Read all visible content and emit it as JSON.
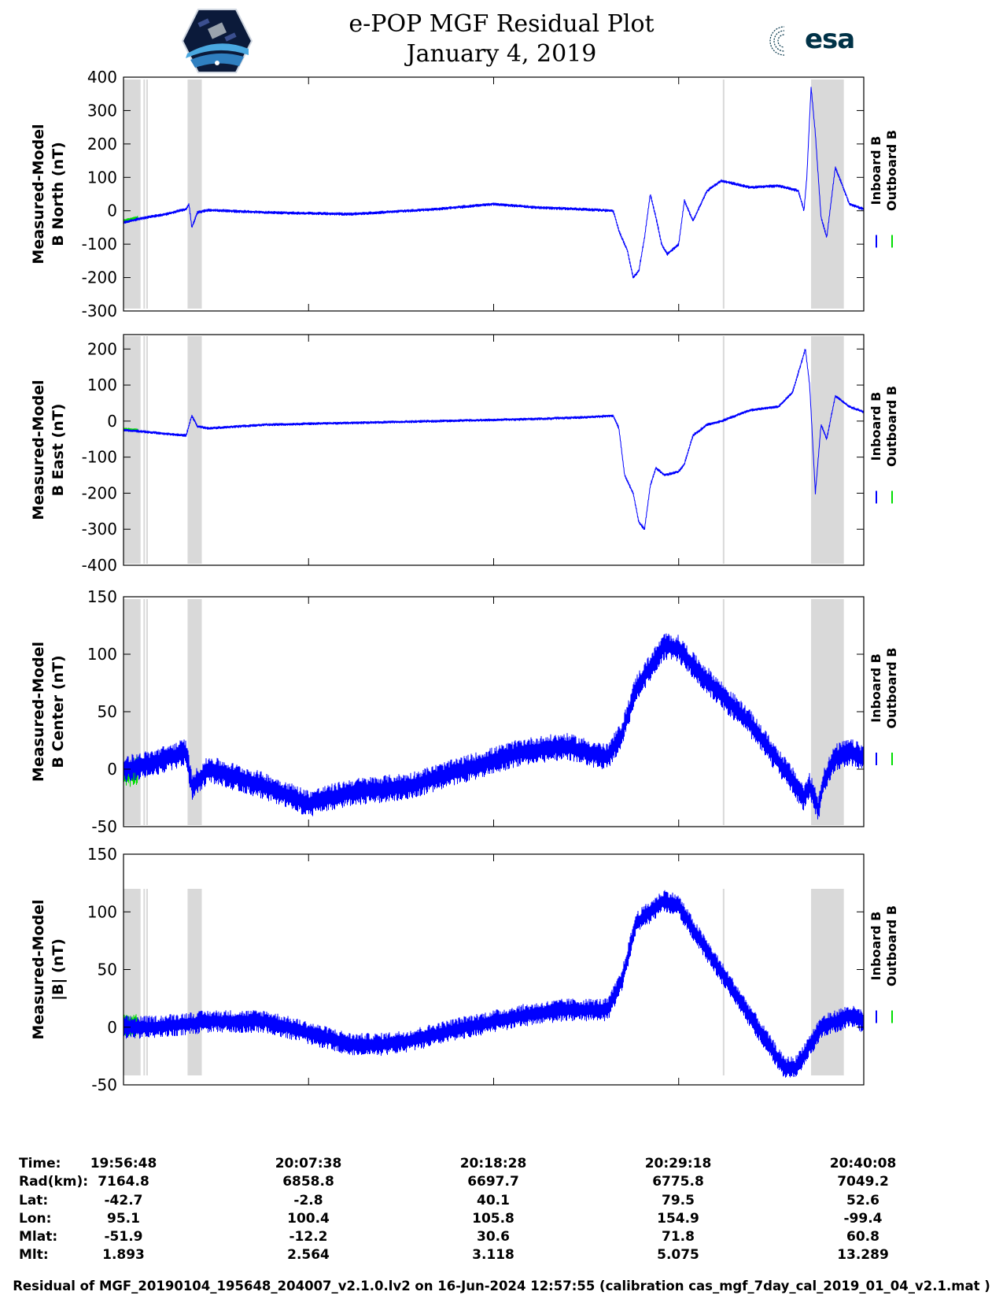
{
  "header": {
    "title_line1": "e-POP MGF Residual Plot",
    "title_line2": "January 4, 2019",
    "logo_left": "cassiope-mission-logo",
    "logo_right_text": "esa"
  },
  "colors": {
    "inboard": "#0000ff",
    "outboard": "#00dd00",
    "gap_shade": "#d9d9d9"
  },
  "chart_data": [
    {
      "type": "line",
      "ylabel_line1": "Measured-Model",
      "ylabel_line2": "B North (nT)",
      "ylim": [
        -300,
        400
      ],
      "yticks": [
        400,
        300,
        200,
        100,
        0,
        -100,
        -200,
        -300
      ],
      "x_range_s": [
        0,
        2600
      ],
      "xticks_s": [
        0,
        650,
        1300,
        1950,
        2600
      ],
      "legend": [
        "Inboard B",
        "Outboard B"
      ],
      "shaded_intervals_s": [
        [
          0,
          60
        ],
        [
          70,
          75
        ],
        [
          80,
          85
        ],
        [
          225,
          275
        ],
        [
          2105,
          2110
        ],
        [
          2415,
          2530
        ]
      ],
      "outboard_intervals_s": [
        [
          0,
          50
        ]
      ],
      "noise": 5,
      "series": [
        {
          "name": "Inboard B",
          "x": [
            0,
            50,
            150,
            220,
            230,
            240,
            260,
            300,
            500,
            800,
            1100,
            1300,
            1450,
            1600,
            1720,
            1740,
            1770,
            1790,
            1810,
            1830,
            1850,
            1870,
            1890,
            1910,
            1950,
            1970,
            2000,
            2050,
            2100,
            2200,
            2300,
            2370,
            2390,
            2400,
            2415,
            2430,
            2450,
            2470,
            2500,
            2550,
            2600
          ],
          "y": [
            -35,
            -25,
            -10,
            5,
            20,
            -50,
            -5,
            2,
            -5,
            -10,
            5,
            20,
            10,
            5,
            0,
            -60,
            -120,
            -200,
            -180,
            -80,
            50,
            -20,
            -100,
            -130,
            -100,
            30,
            -30,
            60,
            90,
            70,
            75,
            60,
            0,
            100,
            370,
            230,
            -20,
            -80,
            130,
            20,
            5
          ]
        },
        {
          "name": "Outboard B",
          "x": [
            0,
            50,
            150,
            220,
            230,
            240,
            260,
            300,
            500,
            800,
            1100,
            1300,
            1450,
            1600,
            1720,
            1740,
            1770,
            1790,
            1810,
            1830,
            1850,
            1870,
            1890,
            1910,
            1950,
            1970,
            2000,
            2050,
            2100,
            2200,
            2300,
            2370,
            2390,
            2400,
            2415,
            2430,
            2450,
            2470,
            2500,
            2550,
            2600
          ],
          "y": [
            -30,
            -20,
            -8,
            8,
            22,
            -46,
            -2,
            4,
            -3,
            -8,
            6,
            22,
            12,
            8,
            2,
            -56,
            -115,
            -190,
            -172,
            -74,
            54,
            -14,
            -92,
            -122,
            -96,
            34,
            -26,
            62,
            92,
            72,
            76,
            62,
            4,
            102,
            360,
            226,
            -16,
            -74,
            128,
            22,
            7
          ]
        }
      ]
    },
    {
      "type": "line",
      "ylabel_line1": "Measured-Model",
      "ylabel_line2": "B East (nT)",
      "ylim": [
        -400,
        240
      ],
      "yticks": [
        200,
        100,
        0,
        -100,
        -200,
        -300,
        -400
      ],
      "x_range_s": [
        0,
        2600
      ],
      "xticks_s": [
        0,
        650,
        1300,
        1950,
        2600
      ],
      "legend": [
        "Inboard B",
        "Outboard B"
      ],
      "shaded_intervals_s": [
        [
          0,
          60
        ],
        [
          70,
          75
        ],
        [
          80,
          85
        ],
        [
          225,
          275
        ],
        [
          2105,
          2110
        ],
        [
          2415,
          2530
        ]
      ],
      "outboard_intervals_s": [
        [
          0,
          50
        ]
      ],
      "noise": 4,
      "series": [
        {
          "name": "Inboard B",
          "x": [
            0,
            50,
            150,
            220,
            240,
            260,
            300,
            500,
            800,
            1100,
            1400,
            1600,
            1720,
            1740,
            1760,
            1790,
            1810,
            1830,
            1850,
            1870,
            1900,
            1950,
            1970,
            2000,
            2050,
            2100,
            2200,
            2300,
            2350,
            2380,
            2395,
            2410,
            2430,
            2450,
            2470,
            2500,
            2550,
            2600
          ],
          "y": [
            -25,
            -28,
            -35,
            -40,
            15,
            -15,
            -20,
            -10,
            -5,
            0,
            5,
            10,
            15,
            -20,
            -150,
            -200,
            -280,
            -300,
            -180,
            -130,
            -150,
            -140,
            -120,
            -40,
            -10,
            0,
            30,
            40,
            80,
            160,
            200,
            100,
            -200,
            -10,
            -50,
            70,
            40,
            25
          ]
        },
        {
          "name": "Outboard B",
          "x": [
            0,
            50,
            150,
            220,
            240,
            260,
            300,
            500,
            800,
            1100,
            1400,
            1600,
            1720,
            1740,
            1760,
            1790,
            1810,
            1830,
            1850,
            1870,
            1900,
            1950,
            1970,
            2000,
            2050,
            2100,
            2200,
            2300,
            2350,
            2380,
            2395,
            2410,
            2430,
            2450,
            2470,
            2500,
            2550,
            2600
          ],
          "y": [
            -22,
            -25,
            -33,
            -38,
            17,
            -13,
            -18,
            -8,
            -3,
            2,
            7,
            12,
            17,
            -17,
            -145,
            -195,
            -272,
            -292,
            -174,
            -124,
            -145,
            -135,
            -115,
            -36,
            -6,
            4,
            34,
            42,
            82,
            162,
            202,
            104,
            -190,
            -6,
            -46,
            74,
            44,
            28
          ]
        }
      ]
    },
    {
      "type": "line",
      "ylabel_line1": "Measured-Model",
      "ylabel_line2": "B Center (nT)",
      "ylim": [
        -50,
        150
      ],
      "yticks": [
        150,
        100,
        50,
        0,
        -50
      ],
      "x_range_s": [
        0,
        2600
      ],
      "xticks_s": [
        0,
        650,
        1300,
        1950,
        2600
      ],
      "legend": [
        "Inboard B",
        "Outboard B"
      ],
      "shaded_intervals_s": [
        [
          0,
          60
        ],
        [
          70,
          75
        ],
        [
          80,
          85
        ],
        [
          225,
          275
        ],
        [
          2105,
          2110
        ],
        [
          2415,
          2530
        ]
      ],
      "outboard_intervals_s": [
        [
          0,
          50
        ]
      ],
      "noise": 12,
      "series": [
        {
          "name": "Inboard B",
          "x": [
            0,
            100,
            220,
            240,
            300,
            500,
            650,
            800,
            1000,
            1200,
            1400,
            1550,
            1700,
            1750,
            1800,
            1900,
            1950,
            2000,
            2200,
            2350,
            2390,
            2410,
            2420,
            2440,
            2460,
            2500,
            2550,
            2600
          ],
          "y": [
            0,
            5,
            15,
            -15,
            0,
            -15,
            -30,
            -20,
            -15,
            0,
            15,
            20,
            10,
            30,
            70,
            107,
            105,
            90,
            40,
            -10,
            -25,
            -15,
            -20,
            -35,
            -10,
            10,
            15,
            10
          ]
        },
        {
          "name": "Outboard B",
          "x": [
            0,
            100,
            220,
            240,
            300,
            500,
            650,
            800,
            1000,
            1200,
            1400,
            1550,
            1700,
            1750,
            1800,
            1900,
            1950,
            2000,
            2200,
            2350,
            2390,
            2410,
            2420,
            2440,
            2460,
            2500,
            2550,
            2600
          ],
          "y": [
            -5,
            2,
            12,
            -12,
            2,
            -12,
            -26,
            -16,
            -12,
            3,
            18,
            22,
            12,
            32,
            72,
            108,
            106,
            92,
            42,
            -8,
            -22,
            -12,
            -17,
            -32,
            -8,
            12,
            17,
            12
          ]
        }
      ]
    },
    {
      "type": "line",
      "ylabel_line1": "Measured-Model",
      "ylabel_line2": "|B| (nT)",
      "ylim": [
        -50,
        150
      ],
      "yticks": [
        150,
        100,
        50,
        0,
        -50
      ],
      "x_range_s": [
        0,
        2600
      ],
      "xticks_s": [
        0,
        650,
        1300,
        1950,
        2600
      ],
      "legend": [
        "Inboard B",
        "Outboard B"
      ],
      "shaded_intervals_s": [
        [
          0,
          60
        ],
        [
          70,
          75
        ],
        [
          80,
          85
        ],
        [
          225,
          275
        ],
        [
          2105,
          2110
        ],
        [
          2415,
          2530
        ]
      ],
      "outboard_intervals_s": [
        [
          0,
          50
        ]
      ],
      "noise": 10,
      "series": [
        {
          "name": "Inboard B",
          "x": [
            0,
            100,
            300,
            500,
            650,
            800,
            900,
            1000,
            1200,
            1400,
            1550,
            1700,
            1750,
            1800,
            1900,
            1950,
            2000,
            2200,
            2320,
            2360,
            2400,
            2450,
            2500,
            2550,
            2600
          ],
          "y": [
            0,
            0,
            5,
            5,
            -5,
            -15,
            -15,
            -12,
            0,
            10,
            15,
            15,
            40,
            90,
            110,
            105,
            85,
            10,
            -35,
            -35,
            -20,
            0,
            5,
            10,
            5
          ]
        },
        {
          "name": "Outboard B",
          "x": [
            0,
            100,
            300,
            500,
            650,
            800,
            900,
            1000,
            1200,
            1400,
            1550,
            1700,
            1750,
            1800,
            1900,
            1950,
            2000,
            2200,
            2320,
            2360,
            2400,
            2450,
            2500,
            2550,
            2600
          ],
          "y": [
            2,
            2,
            7,
            7,
            -3,
            -12,
            -12,
            -10,
            2,
            12,
            17,
            17,
            42,
            92,
            111,
            106,
            87,
            12,
            -32,
            -32,
            -17,
            2,
            7,
            12,
            7
          ]
        }
      ]
    }
  ],
  "ephemeris": {
    "labels": [
      "Time:",
      "Rad(km):",
      "Lat:",
      "Lon:",
      "Mlat:",
      "Mlt:"
    ],
    "columns": [
      [
        "19:56:48",
        "7164.8",
        "-42.7",
        "95.1",
        "-51.9",
        "1.893"
      ],
      [
        "20:07:38",
        "6858.8",
        "-2.8",
        "100.4",
        "-12.2",
        "2.564"
      ],
      [
        "20:18:28",
        "6697.7",
        "40.1",
        "105.8",
        "30.6",
        "3.118"
      ],
      [
        "20:29:18",
        "6775.8",
        "79.5",
        "154.9",
        "71.8",
        "5.075"
      ],
      [
        "20:40:08",
        "7049.2",
        "52.6",
        "-99.4",
        "60.8",
        "13.289"
      ]
    ]
  },
  "footer": "Residual of MGF_20190104_195648_204007_v2.1.0.lv2 on 16-Jun-2024 12:57:55 (calibration cas_mgf_7day_cal_2019_01_04_v2.1.mat )"
}
